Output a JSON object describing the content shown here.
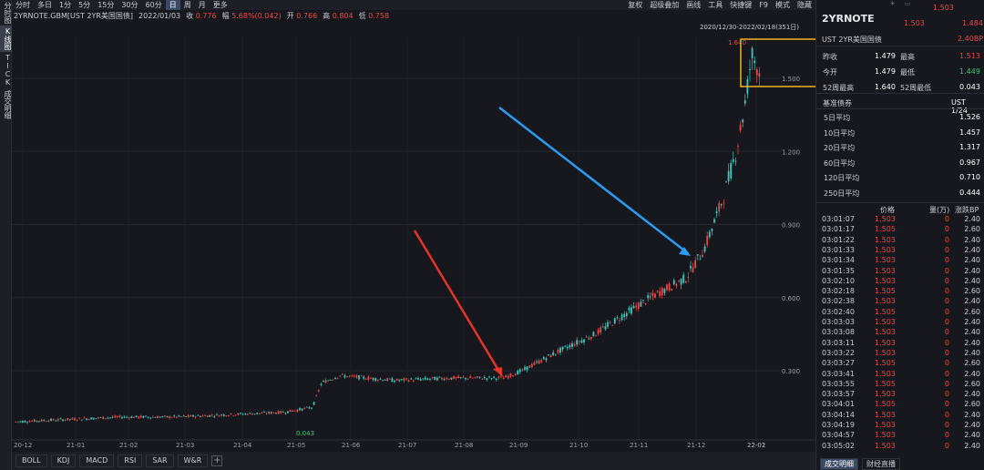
{
  "left_rail": [
    "分时图",
    "K线图",
    "TICK",
    "成交明细"
  ],
  "toolbar": {
    "periods": [
      "分时",
      "多日",
      "1分",
      "5分",
      "15分",
      "30分",
      "60分",
      "日",
      "周",
      "月",
      "更多"
    ],
    "active_period": "日",
    "right_items": [
      "复权",
      "超级叠加",
      "画线",
      "工具",
      "快捷键",
      "F9",
      "模式",
      "隐藏"
    ]
  },
  "quote": {
    "symbol": "2YRNOTE.GBM[UST 2YR美国国债]",
    "date": "2022/01/03",
    "close_label": "收",
    "close": "0.776",
    "change_label": "幅",
    "change": "5.68%(0.042)",
    "open_label": "开",
    "open": "0.766",
    "high_label": "高",
    "high": "0.804",
    "low_label": "低",
    "low": "0.758"
  },
  "chart": {
    "range_label": "2020/12/30-2022/02/18(351日)",
    "high_marker": "1.640",
    "low_marker": "0.043",
    "y_ticks": [
      "1.500",
      "1.200",
      "0.900",
      "0.600",
      "0.300"
    ],
    "x_ticks": [
      "20-12",
      "21-01",
      "21-02",
      "21-03",
      "21-04",
      "21-05",
      "21-06",
      "21-07",
      "21-08",
      "21-09",
      "21-10",
      "21-11",
      "21-12",
      "22-01",
      "22-02"
    ],
    "up_color": "#e84a4a",
    "down_color": "#3ec9c0",
    "highlight_color": "#f2b322",
    "arrow1_color": "#e8332a",
    "arrow2_color": "#2d9bf0"
  },
  "indicators": [
    "BOLL",
    "KDJ",
    "MACD",
    "RSI",
    "SAR",
    "W&R"
  ],
  "side": {
    "title": "2YRNOTE",
    "top_price": "1.503",
    "price": "1.503",
    "price2": "1.484",
    "name": "UST 2YR美国国债",
    "change_bp": "2.40BP",
    "stats": [
      {
        "k1": "昨收",
        "v1": "1.479",
        "k2": "最高",
        "v2": "1.513"
      },
      {
        "k1": "今开",
        "v1": "1.479",
        "k2": "最低",
        "v2": "1.449"
      },
      {
        "k1": "52周最高",
        "v1": "1.640",
        "k2": "52周最低",
        "v2": "0.043"
      }
    ],
    "benchmark_label": "基准债券",
    "benchmark_value": "UST 1/24",
    "averages": [
      {
        "k": "5日平均",
        "v": "1.526"
      },
      {
        "k": "10日平均",
        "v": "1.457"
      },
      {
        "k": "20日平均",
        "v": "1.317"
      },
      {
        "k": "60日平均",
        "v": "0.967"
      },
      {
        "k": "120日平均",
        "v": "0.710"
      },
      {
        "k": "250日平均",
        "v": "0.444"
      }
    ],
    "tick_headers": [
      "价格",
      "量(万)",
      "涨跌BP"
    ],
    "ticks": [
      {
        "t": "03:01:07",
        "p": "1.503",
        "v": "0",
        "c": "2.40"
      },
      {
        "t": "03:01:17",
        "p": "1.505",
        "v": "0",
        "c": "2.60"
      },
      {
        "t": "03:01:22",
        "p": "1.503",
        "v": "0",
        "c": "2.40"
      },
      {
        "t": "03:01:33",
        "p": "1.503",
        "v": "0",
        "c": "2.40"
      },
      {
        "t": "03:01:34",
        "p": "1.503",
        "v": "0",
        "c": "2.40"
      },
      {
        "t": "03:01:35",
        "p": "1.503",
        "v": "0",
        "c": "2.40"
      },
      {
        "t": "03:02:10",
        "p": "1.503",
        "v": "0",
        "c": "2.40"
      },
      {
        "t": "03:02:18",
        "p": "1.505",
        "v": "0",
        "c": "2.60"
      },
      {
        "t": "03:02:38",
        "p": "1.503",
        "v": "0",
        "c": "2.40"
      },
      {
        "t": "03:02:40",
        "p": "1.505",
        "v": "0",
        "c": "2.60"
      },
      {
        "t": "03:03:03",
        "p": "1.503",
        "v": "0",
        "c": "2.40"
      },
      {
        "t": "03:03:08",
        "p": "1.503",
        "v": "0",
        "c": "2.40"
      },
      {
        "t": "03:03:11",
        "p": "1.503",
        "v": "0",
        "c": "2.40"
      },
      {
        "t": "03:03:22",
        "p": "1.503",
        "v": "0",
        "c": "2.40"
      },
      {
        "t": "03:03:27",
        "p": "1.505",
        "v": "0",
        "c": "2.60"
      },
      {
        "t": "03:03:41",
        "p": "1.503",
        "v": "0",
        "c": "2.40"
      },
      {
        "t": "03:03:55",
        "p": "1.505",
        "v": "0",
        "c": "2.60"
      },
      {
        "t": "03:03:57",
        "p": "1.503",
        "v": "0",
        "c": "2.40"
      },
      {
        "t": "03:04:01",
        "p": "1.505",
        "v": "0",
        "c": "2.60"
      },
      {
        "t": "03:04:14",
        "p": "1.503",
        "v": "0",
        "c": "2.40"
      },
      {
        "t": "03:04:19",
        "p": "1.503",
        "v": "0",
        "c": "2.40"
      },
      {
        "t": "03:04:57",
        "p": "1.503",
        "v": "0",
        "c": "2.40"
      },
      {
        "t": "03:05:02",
        "p": "1.503",
        "v": "0",
        "c": "2.40"
      }
    ],
    "bottom_tabs": [
      "成交明细",
      "财经直播"
    ]
  }
}
